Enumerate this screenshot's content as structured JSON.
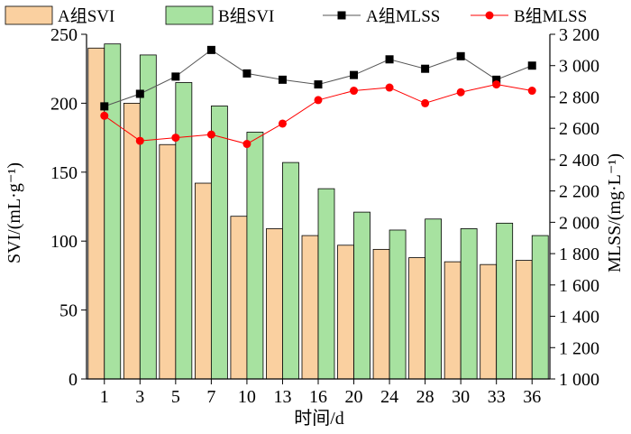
{
  "chart_data": {
    "type": "bar+line",
    "categories": [
      "1",
      "3",
      "5",
      "7",
      "10",
      "13",
      "16",
      "20",
      "24",
      "28",
      "30",
      "33",
      "36"
    ],
    "xlabel": "时间/d",
    "ylabel_left": "SVI/(mL·g⁻¹)",
    "ylabel_right": "MLSS/(mg·L⁻¹)",
    "ylim_left": [
      0,
      250
    ],
    "yticks_left": [
      "0",
      "50",
      "100",
      "150",
      "200",
      "250"
    ],
    "ylim_right": [
      1000,
      3200
    ],
    "yticks_right": [
      "1 000",
      "1 200",
      "1 400",
      "1 600",
      "1 800",
      "2 000",
      "2 200",
      "2 400",
      "2 600",
      "2 800",
      "3 000",
      "3 200"
    ],
    "grid": false,
    "legend_position": "top",
    "bar_series": [
      {
        "name": "A组SVI",
        "color": "#FAD0A0",
        "values": [
          240,
          200,
          170,
          142,
          118,
          109,
          104,
          97,
          94,
          88,
          85,
          83,
          86
        ]
      },
      {
        "name": "B组SVI",
        "color": "#A7E2A0",
        "values": [
          243,
          235,
          215,
          198,
          179,
          157,
          138,
          121,
          108,
          116,
          109,
          113,
          104
        ]
      }
    ],
    "line_series": [
      {
        "name": "A组MLSS",
        "color": "#000000",
        "marker": "square",
        "values": [
          2740,
          2820,
          2930,
          3100,
          2950,
          2910,
          2880,
          2940,
          3040,
          2980,
          3060,
          2910,
          3000
        ]
      },
      {
        "name": "B组MLSS",
        "color": "#FF0000",
        "marker": "circle",
        "values": [
          2680,
          2520,
          2540,
          2560,
          2500,
          2630,
          2780,
          2840,
          2860,
          2760,
          2830,
          2880,
          2840
        ]
      }
    ]
  }
}
